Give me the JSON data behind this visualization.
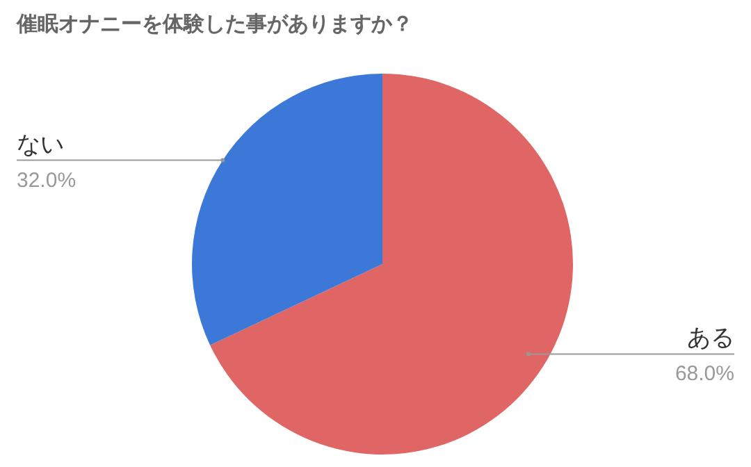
{
  "chart_data": {
    "type": "pie",
    "title": "催眠オナニーを体験した事がありますか？",
    "categories": [
      "ある",
      "ない"
    ],
    "values": [
      68,
      32
    ],
    "colors": [
      "#e06666",
      "#3c78d8"
    ],
    "value_labels": [
      "68.0%",
      "32.0%"
    ]
  }
}
